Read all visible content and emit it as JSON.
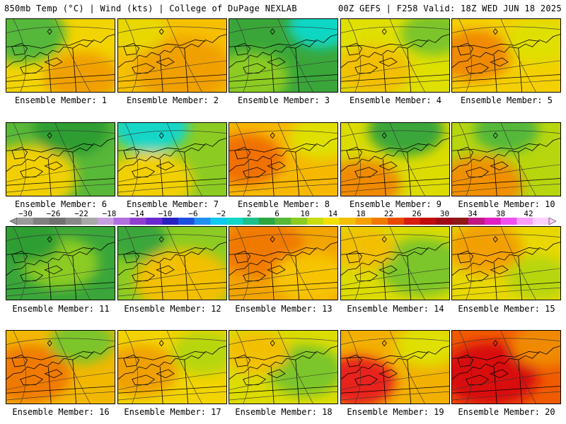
{
  "header": {
    "left": "850mb Temp (°C) | Wind (kts) | College of DuPage NEXLAB",
    "right": "00Z GEFS | F258 Valid: 18Z WED JUN 18 2025"
  },
  "members": [
    {
      "label": "Ensemble Member: 1",
      "bg": "#f2d400",
      "blobs": [
        [
          "#55b83a",
          0.15,
          0.2,
          0.4
        ],
        [
          "#f0a000",
          0.7,
          0.8,
          0.35
        ]
      ]
    },
    {
      "label": "Ensemble Member: 2",
      "bg": "#f6c000",
      "blobs": [
        [
          "#f0a000",
          0.6,
          0.7,
          0.45
        ],
        [
          "#e8d800",
          0.15,
          0.15,
          0.3
        ]
      ]
    },
    {
      "label": "Ensemble Member: 3",
      "bg": "#3aa63a",
      "blobs": [
        [
          "#11d7c4",
          0.85,
          0.1,
          0.3
        ],
        [
          "#8ccc22",
          0.2,
          0.8,
          0.35
        ]
      ]
    },
    {
      "label": "Ensemble Member: 4",
      "bg": "#dfe000",
      "blobs": [
        [
          "#f2c000",
          0.3,
          0.7,
          0.35
        ],
        [
          "#7cc52a",
          0.85,
          0.2,
          0.3
        ]
      ]
    },
    {
      "label": "Ensemble Member: 5",
      "bg": "#f4d000",
      "blobs": [
        [
          "#f08a00",
          0.2,
          0.5,
          0.35
        ],
        [
          "#dfe000",
          0.8,
          0.3,
          0.3
        ]
      ]
    },
    {
      "label": "Ensemble Member: 6",
      "bg": "#58b838",
      "blobs": [
        [
          "#f2d000",
          0.2,
          0.75,
          0.45
        ],
        [
          "#2e9e30",
          0.6,
          0.1,
          0.35
        ]
      ]
    },
    {
      "label": "Ensemble Member: 7",
      "bg": "#8ccc22",
      "blobs": [
        [
          "#12d6c8",
          0.3,
          0.05,
          0.35
        ],
        [
          "#f2d000",
          0.3,
          0.8,
          0.4
        ]
      ]
    },
    {
      "label": "Ensemble Member: 8",
      "bg": "#f6b800",
      "blobs": [
        [
          "#f07000",
          0.15,
          0.5,
          0.35
        ],
        [
          "#dfe000",
          0.85,
          0.2,
          0.3
        ]
      ]
    },
    {
      "label": "Ensemble Member: 9",
      "bg": "#dcdc00",
      "blobs": [
        [
          "#f08a00",
          0.2,
          0.85,
          0.35
        ],
        [
          "#3aa63a",
          0.6,
          0.1,
          0.35
        ]
      ]
    },
    {
      "label": "Ensemble Member: 10",
      "bg": "#b7d60e",
      "blobs": [
        [
          "#f09000",
          0.25,
          0.85,
          0.4
        ],
        [
          "#55b83a",
          0.5,
          0.1,
          0.3
        ]
      ]
    },
    {
      "label": "Ensemble Member: 11",
      "bg": "#3aa63a",
      "blobs": [
        [
          "#8ccc22",
          0.5,
          0.5,
          0.35
        ],
        [
          "#2e9e30",
          0.2,
          0.2,
          0.3
        ]
      ]
    },
    {
      "label": "Ensemble Member: 12",
      "bg": "#8ccc22",
      "blobs": [
        [
          "#f2c000",
          0.6,
          0.75,
          0.45
        ],
        [
          "#3aa63a",
          0.15,
          0.15,
          0.3
        ]
      ]
    },
    {
      "label": "Ensemble Member: 13",
      "bg": "#f2a400",
      "blobs": [
        [
          "#f07a00",
          0.3,
          0.3,
          0.4
        ],
        [
          "#f6c400",
          0.75,
          0.7,
          0.35
        ]
      ]
    },
    {
      "label": "Ensemble Member: 14",
      "bg": "#dcdc00",
      "blobs": [
        [
          "#7cc52a",
          0.75,
          0.55,
          0.4
        ],
        [
          "#f2c000",
          0.2,
          0.3,
          0.3
        ]
      ]
    },
    {
      "label": "Ensemble Member: 15",
      "bg": "#e8d800",
      "blobs": [
        [
          "#f2a000",
          0.3,
          0.3,
          0.35
        ],
        [
          "#b7d60e",
          0.8,
          0.7,
          0.3
        ]
      ]
    },
    {
      "label": "Ensemble Member: 16",
      "bg": "#f2b800",
      "blobs": [
        [
          "#f07a00",
          0.2,
          0.6,
          0.4
        ],
        [
          "#7cc52a",
          0.7,
          0.15,
          0.3
        ]
      ]
    },
    {
      "label": "Ensemble Member: 17",
      "bg": "#f2d400",
      "blobs": [
        [
          "#f0a000",
          0.2,
          0.55,
          0.35
        ],
        [
          "#b7d60e",
          0.8,
          0.3,
          0.3
        ]
      ]
    },
    {
      "label": "Ensemble Member: 18",
      "bg": "#dcdc00",
      "blobs": [
        [
          "#7cc52a",
          0.7,
          0.55,
          0.35
        ],
        [
          "#f2c000",
          0.25,
          0.3,
          0.3
        ]
      ]
    },
    {
      "label": "Ensemble Member: 19",
      "bg": "#f2b000",
      "blobs": [
        [
          "#e8201a",
          0.15,
          0.7,
          0.35
        ],
        [
          "#dfe000",
          0.8,
          0.2,
          0.3
        ]
      ]
    },
    {
      "label": "Ensemble Member: 20",
      "bg": "#f05a00",
      "blobs": [
        [
          "#d80e0e",
          0.35,
          0.6,
          0.45
        ],
        [
          "#f08a00",
          0.85,
          0.2,
          0.3
        ]
      ]
    }
  ],
  "colorbar": {
    "labels": [
      "−30",
      "−26",
      "−22",
      "−18",
      "−14",
      "−10",
      "−6",
      "−2",
      "2",
      "6",
      "10",
      "14",
      "18",
      "22",
      "26",
      "30",
      "34",
      "38",
      "42"
    ],
    "colors": [
      "#9a9a9a",
      "#808080",
      "#707070",
      "#888888",
      "#a8a8a8",
      "#c8a0e0",
      "#b070e0",
      "#9040d0",
      "#6a2ad0",
      "#2a20c0",
      "#1e50e0",
      "#2090f0",
      "#10c8f0",
      "#12d6c8",
      "#1cc08a",
      "#2ea640",
      "#58b838",
      "#8ccc22",
      "#c8dc10",
      "#f2e000",
      "#f2c000",
      "#f6a000",
      "#f07a00",
      "#e84a00",
      "#d81e10",
      "#c00c0c",
      "#a00818",
      "#901818",
      "#c01880",
      "#e020c0",
      "#f050f0",
      "#f8a0f8",
      "#fbd0fb"
    ]
  }
}
